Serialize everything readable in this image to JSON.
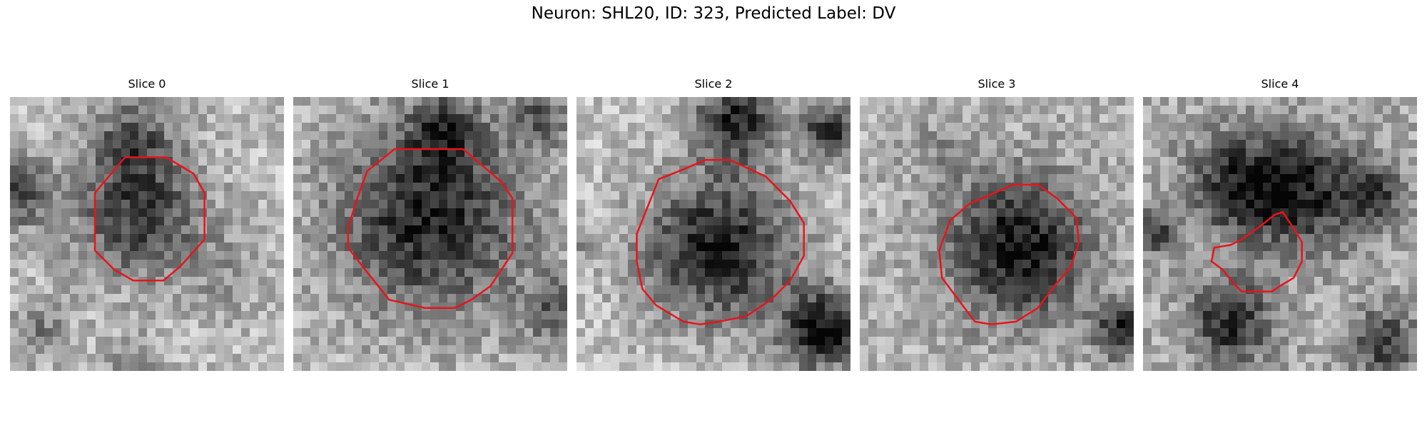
{
  "figure": {
    "title": "Neuron: SHL20, ID: 323, Predicted Label: DV",
    "contour_color": "#e8141a",
    "colormap": "grayscale",
    "panels": [
      {
        "title": "Slice 0"
      },
      {
        "title": "Slice 1"
      },
      {
        "title": "Slice 2"
      },
      {
        "title": "Slice 3"
      },
      {
        "title": "Slice 4"
      }
    ]
  }
}
